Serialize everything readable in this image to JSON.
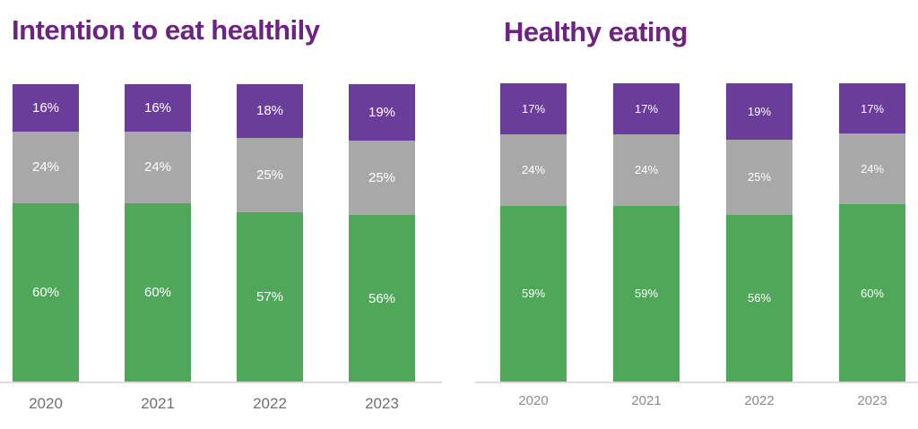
{
  "colors": {
    "title": "#6d2382",
    "purple": "#6a3d9b",
    "grey": "#a8a8a8",
    "green": "#4fa75a",
    "axis-line": "#dcdcdc",
    "bar-label": "#ffffff",
    "year-label-left": "#6f6f6f",
    "year-label-right": "#8c8c8c"
  },
  "chart_data": [
    {
      "type": "bar",
      "stacked": true,
      "orientation": "vertical",
      "title": "Intention to eat healthily",
      "categories": [
        "2020",
        "2021",
        "2022",
        "2023"
      ],
      "series_order": "top-to-bottom",
      "series": [
        {
          "name": "purple",
          "color": "#6a3d9b",
          "values": [
            16,
            16,
            18,
            19
          ]
        },
        {
          "name": "grey",
          "color": "#a8a8a8",
          "values": [
            24,
            24,
            25,
            25
          ]
        },
        {
          "name": "green",
          "color": "#4fa75a",
          "values": [
            60,
            60,
            57,
            56
          ]
        }
      ],
      "value_suffix": "%",
      "ylim": [
        0,
        100
      ],
      "legend": false,
      "gridlines": false
    },
    {
      "type": "bar",
      "stacked": true,
      "orientation": "vertical",
      "title": "Healthy eating",
      "categories": [
        "2020",
        "2021",
        "2022",
        "2023"
      ],
      "series_order": "top-to-bottom",
      "series": [
        {
          "name": "purple",
          "color": "#6a3d9b",
          "values": [
            17,
            17,
            19,
            17
          ]
        },
        {
          "name": "grey",
          "color": "#a8a8a8",
          "values": [
            24,
            24,
            25,
            24
          ]
        },
        {
          "name": "green",
          "color": "#4fa75a",
          "values": [
            59,
            59,
            56,
            60
          ]
        }
      ],
      "value_suffix": "%",
      "ylim": [
        0,
        100
      ],
      "legend": false,
      "gridlines": false
    }
  ]
}
